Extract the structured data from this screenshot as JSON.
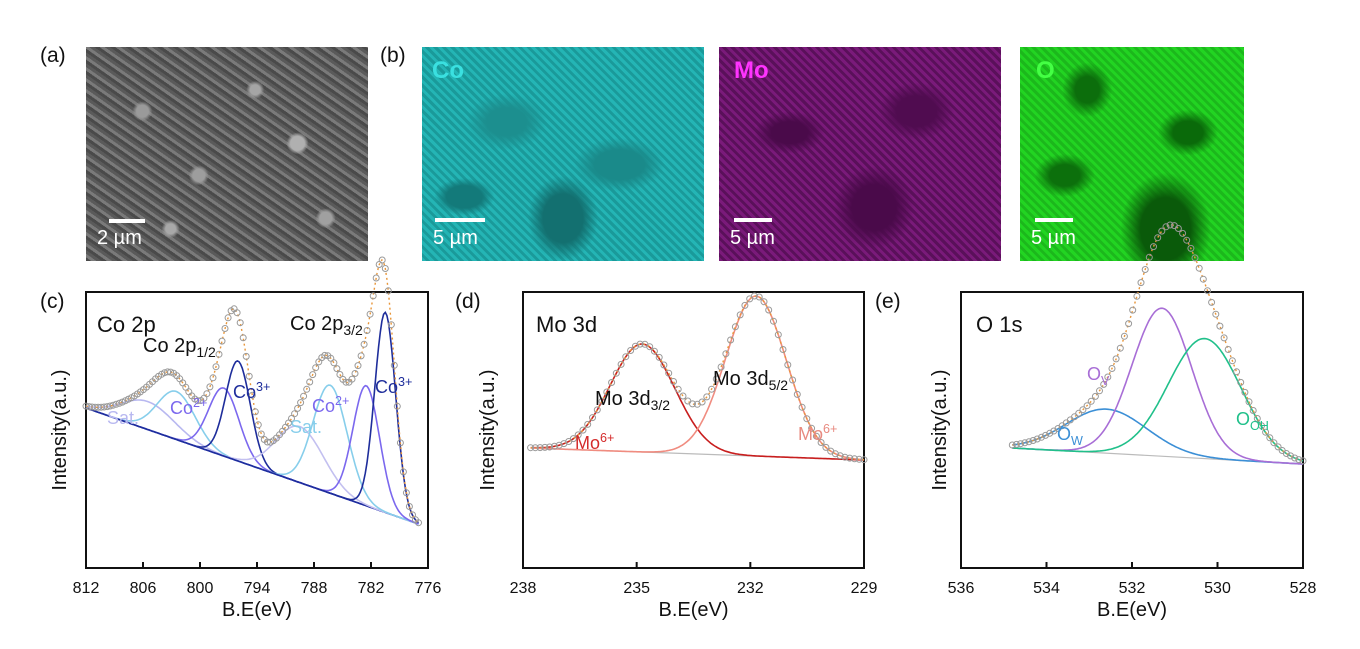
{
  "figure": {
    "panel_labels": [
      "(a)",
      "(b)",
      "(c)",
      "(d)",
      "(e)"
    ],
    "sem": {
      "scale_bar": "2 µm"
    },
    "eds_maps": [
      {
        "element": "Co",
        "color": "#2ad4d4",
        "scale_bar": "5 µm"
      },
      {
        "element": "Mo",
        "color": "#ff33ff",
        "scale_bar": "5 µm"
      },
      {
        "element": "O",
        "color": "#33ff33",
        "scale_bar": "5 µm"
      }
    ]
  },
  "chart_data": [
    {
      "type": "line",
      "title": "Co 2p",
      "xlabel": "B.E(eV)",
      "ylabel": "Intensity(a.u.)",
      "xlim": [
        812,
        776
      ],
      "xticks": [
        812,
        806,
        800,
        794,
        788,
        782,
        776
      ],
      "ylim": [
        0,
        1
      ],
      "grid": false,
      "annotations": [
        {
          "text": "Co 2p",
          "sub": "1/2",
          "x": 798
        },
        {
          "text": "Co 2p",
          "sub": "3/2",
          "x": 784
        },
        {
          "text": "Sat.",
          "x": 806
        },
        {
          "text": "Co",
          "sup": "2+",
          "x": 800
        },
        {
          "text": "Co",
          "sup": "3+",
          "x": 796
        },
        {
          "text": "Sat.",
          "x": 788
        },
        {
          "text": "Co",
          "sup": "2+",
          "x": 784
        },
        {
          "text": "Co",
          "sup": "3+",
          "x": 779.5
        }
      ],
      "baseline": [
        [
          812,
          0.4
        ],
        [
          777,
          0.11
        ]
      ],
      "series": [
        {
          "name": "Sat. (2p1/2)",
          "color": "#b8b8f0",
          "center": 805.5,
          "height": 0.07,
          "width": 2.8
        },
        {
          "name": "Co2+ (2p1/2 sat)",
          "color": "#87ceeb",
          "center": 802.5,
          "height": 0.12,
          "width": 2.0
        },
        {
          "name": "Co2+ (2p1/2)",
          "color": "#7b68ee",
          "center": 797.5,
          "height": 0.17,
          "width": 1.6
        },
        {
          "name": "Co3+ (2p1/2)",
          "color": "#1e2d9b",
          "center": 796.0,
          "height": 0.25,
          "width": 1.3
        },
        {
          "name": "Sat. (2p3/2)",
          "color": "#c3c0f0",
          "center": 789.5,
          "height": 0.14,
          "width": 2.5
        },
        {
          "name": "Co2+ sat (2p3/2)",
          "color": "#87ceeb",
          "center": 786.3,
          "height": 0.27,
          "width": 1.8
        },
        {
          "name": "Co2+ (2p3/2)",
          "color": "#7b68ee",
          "center": 782.5,
          "height": 0.3,
          "width": 1.4
        },
        {
          "name": "Co3+ (2p3/2)",
          "color": "#1e2d9b",
          "center": 780.5,
          "height": 0.5,
          "width": 1.1
        }
      ]
    },
    {
      "type": "line",
      "title": "Mo 3d",
      "xlabel": "B.E(eV)",
      "ylabel": "Intensity(a.u.)",
      "xlim": [
        238,
        229
      ],
      "xticks": [
        238,
        235,
        232,
        229
      ],
      "ylim": [
        0,
        1
      ],
      "grid": false,
      "annotations": [
        {
          "text": "Mo 3d",
          "sub": "3/2",
          "x": 235
        },
        {
          "text": "Mo 3d",
          "sub": "5/2",
          "x": 232
        },
        {
          "text": "Mo",
          "sup": "6+",
          "x": 236.2,
          "color": "#d42a2a"
        },
        {
          "text": "Mo",
          "sup": "6+",
          "x": 230.5,
          "color": "#e88a80"
        }
      ],
      "baseline": [
        [
          237.8,
          0.3
        ],
        [
          229,
          0.27
        ]
      ],
      "series": [
        {
          "name": "Mo6+ 3d3/2",
          "color": "#c81e1e",
          "center": 234.85,
          "height": 0.27,
          "width": 0.85
        },
        {
          "name": "Mo6+ 3d5/2",
          "color": "#f08c80",
          "center": 231.85,
          "height": 0.4,
          "width": 0.8
        }
      ]
    },
    {
      "type": "line",
      "title": "O 1s",
      "xlabel": "B.E(eV)",
      "ylabel": "Intensity(a.u.)",
      "xlim": [
        536,
        528
      ],
      "xticks": [
        536,
        534,
        532,
        530,
        528
      ],
      "ylim": [
        0,
        1
      ],
      "grid": false,
      "annotations": [
        {
          "text": "O",
          "sub": "W",
          "x": 533.2,
          "color": "#3b8fd6"
        },
        {
          "text": "O",
          "sub": "V",
          "x": 532.0,
          "color": "#a86ed6"
        },
        {
          "text": "O",
          "sub": "OH",
          "x": 529.6,
          "color": "#20c08a"
        }
      ],
      "baseline": [
        [
          534.8,
          0.3
        ],
        [
          528,
          0.26
        ]
      ],
      "series": [
        {
          "name": "O_W",
          "color": "#3b8fd6",
          "center": 532.6,
          "height": 0.11,
          "width": 0.95
        },
        {
          "name": "O_V",
          "color": "#a86ed6",
          "center": 531.3,
          "height": 0.37,
          "width": 0.7
        },
        {
          "name": "O_OH",
          "color": "#20c08a",
          "center": 530.3,
          "height": 0.3,
          "width": 0.85
        }
      ]
    }
  ]
}
